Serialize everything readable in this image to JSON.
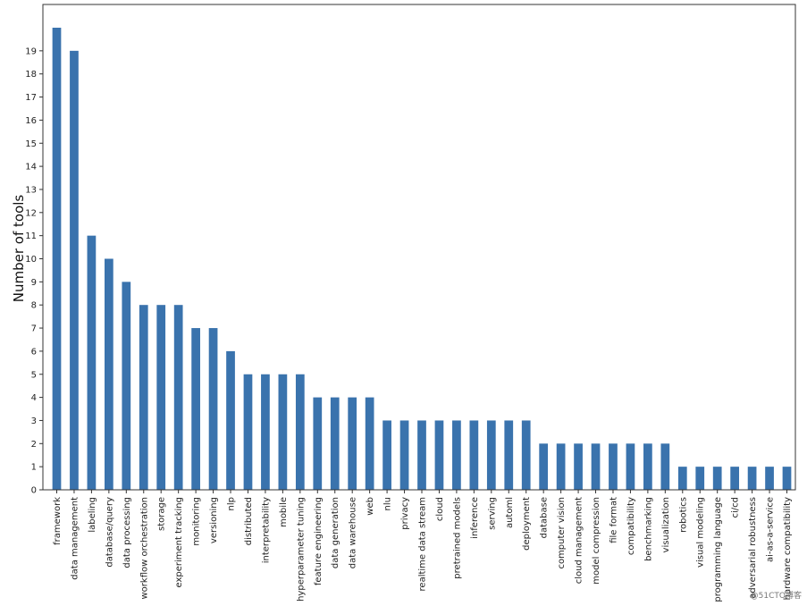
{
  "chart_data": {
    "type": "bar",
    "title": "",
    "xlabel": "",
    "ylabel": "Number of tools",
    "ylim": [
      0,
      20
    ],
    "yticks": [
      0,
      1,
      2,
      3,
      4,
      5,
      6,
      7,
      8,
      9,
      10,
      11,
      12,
      13,
      14,
      15,
      16,
      17,
      18,
      19
    ],
    "grid": false,
    "bar_color": "#3a73ad",
    "categories": [
      "framework",
      "data management",
      "labeling",
      "database/query",
      "data processing",
      "workflow orchestration",
      "storage",
      "experiment tracking",
      "monitoring",
      "versioning",
      "nlp",
      "distributed",
      "interpretability",
      "mobile",
      "hyperparameter tuning",
      "feature engineering",
      "data generation",
      "data warehouse",
      "web",
      "nlu",
      "privacy",
      "realtime data stream",
      "cloud",
      "pretrained models",
      "inference",
      "serving",
      "automl",
      "deployment",
      "database",
      "computer vision",
      "cloud management",
      "model compression",
      "file format",
      "compatibility",
      "benchmarking",
      "visualization",
      "robotics",
      "visual modeling",
      "programming language",
      "ci/cd",
      "adversarial robustness",
      "ai-as-a-service",
      "hardware compatibility"
    ],
    "values": [
      20,
      19,
      11,
      10,
      9,
      8,
      8,
      8,
      7,
      7,
      6,
      5,
      5,
      5,
      5,
      4,
      4,
      4,
      4,
      3,
      3,
      3,
      3,
      3,
      3,
      3,
      3,
      3,
      2,
      2,
      2,
      2,
      2,
      2,
      2,
      2,
      1,
      1,
      1,
      1,
      1,
      1,
      1
    ]
  },
  "watermark": "@51CTO博客"
}
